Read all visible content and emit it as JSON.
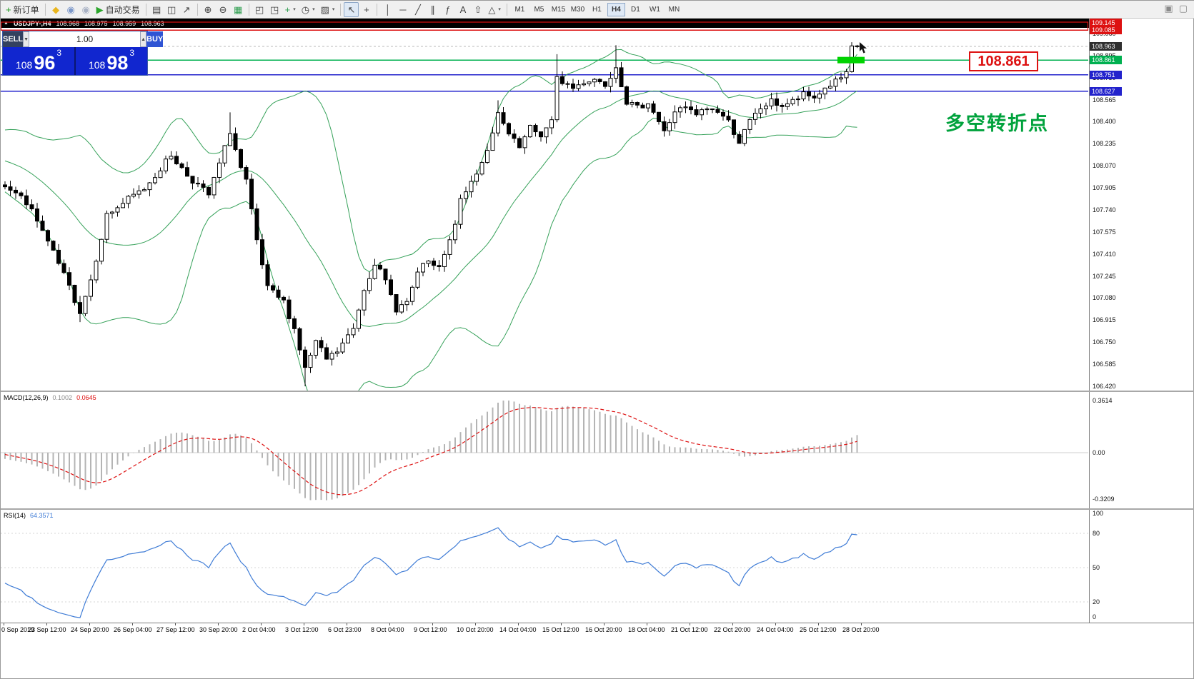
{
  "toolbar": {
    "items": [
      {
        "name": "new-order-button",
        "glyph": "+",
        "glyph_color": "#1f9d1f",
        "label": "新订单"
      },
      {
        "sep": true
      },
      {
        "name": "mql5-market-icon",
        "glyph": "◆",
        "glyph_color": "#e9b51d"
      },
      {
        "name": "community-icon",
        "glyph": "◉",
        "glyph_color": "#7b97c9"
      },
      {
        "name": "sounds-icon",
        "glyph": "◉",
        "glyph_color": "#a9b2c4"
      },
      {
        "name": "auto-trading-button",
        "glyph": "▶",
        "glyph_color": "#2aa52a",
        "label": "自动交易"
      },
      {
        "sep": true
      },
      {
        "name": "bar-chart-icon",
        "glyph": "▤"
      },
      {
        "name": "candlestick-chart-icon",
        "glyph": "◫"
      },
      {
        "name": "line-chart-icon",
        "glyph": "↗"
      },
      {
        "sep": true
      },
      {
        "name": "zoom-in-icon",
        "glyph": "⊕"
      },
      {
        "name": "zoom-out-icon",
        "glyph": "⊖"
      },
      {
        "name": "tile-windows-icon",
        "glyph": "▦",
        "glyph_color": "#2e9e4f"
      },
      {
        "sep": true
      },
      {
        "name": "cascade-windows-icon",
        "glyph": "◰"
      },
      {
        "name": "arrange-windows-icon",
        "glyph": "◳"
      },
      {
        "name": "indicators-icon",
        "glyph": "+",
        "glyph_color": "#2e9e4f",
        "caret": true
      },
      {
        "name": "periods-icon",
        "glyph": "◷",
        "caret": true
      },
      {
        "name": "templates-icon",
        "glyph": "▨",
        "caret": true
      },
      {
        "sep": true
      },
      {
        "name": "cursor-icon",
        "glyph": "↖",
        "active": true
      },
      {
        "name": "crosshair-icon",
        "glyph": "+"
      },
      {
        "sep": true
      },
      {
        "name": "vertical-line-icon",
        "glyph": "│"
      },
      {
        "name": "horizontal-line-icon",
        "glyph": "─"
      },
      {
        "name": "trendline-icon",
        "glyph": "╱"
      },
      {
        "name": "equidistant-channel-icon",
        "glyph": "∥"
      },
      {
        "name": "fibonacci-icon",
        "glyph": "ƒ"
      },
      {
        "name": "text-label-icon",
        "glyph": "A"
      },
      {
        "name": "arrows-tool-icon",
        "glyph": "⇧"
      },
      {
        "name": "shapes-icon",
        "glyph": "△",
        "caret": true
      },
      {
        "sep": true
      }
    ],
    "timeframes": [
      "M1",
      "M5",
      "M15",
      "M30",
      "H1",
      "H4",
      "D1",
      "W1",
      "MN"
    ],
    "active_timeframe": "H4",
    "right_items": [
      {
        "name": "restore-window-icon",
        "glyph": "▣"
      },
      {
        "name": "close-window-icon",
        "glyph": "▢"
      }
    ]
  },
  "symbol_bar": {
    "expand_icon": "▲",
    "title": "USDJPY-,H4",
    "open": "108.968",
    "high": "108.975",
    "low": "108.959",
    "close": "108.963"
  },
  "trade_panel": {
    "sell_label": "SELL",
    "buy_label": "BUY",
    "volume": "1.00",
    "spin_down": "▼",
    "spin_up": "▲",
    "sell_price": {
      "big": "108",
      "pips": "96",
      "point": "3"
    },
    "buy_price": {
      "big": "108",
      "pips": "98",
      "point": "3"
    }
  },
  "price_axis": {
    "labels": [
      "109.060",
      "108.895",
      "108.730",
      "108.565",
      "108.400",
      "108.235",
      "108.070",
      "107.905",
      "107.740",
      "107.575",
      "107.410",
      "107.245",
      "107.080",
      "106.915",
      "106.750",
      "106.585",
      "106.420"
    ],
    "tags": [
      {
        "name": "resistance-1",
        "value": "109.145",
        "color": "#dd1111"
      },
      {
        "name": "resistance-2",
        "value": "109.085",
        "color": "#dd1111"
      },
      {
        "name": "bid",
        "value": "108.963",
        "color": "#2f2f2f"
      },
      {
        "name": "pivot",
        "value": "108.861",
        "color": "#00b050"
      },
      {
        "name": "support-1",
        "value": "108.751",
        "color": "#2222cc"
      },
      {
        "name": "support-2",
        "value": "108.627",
        "color": "#2222cc"
      }
    ]
  },
  "annotations": {
    "price_label": "108.861",
    "turning_point_text": "多空转折点"
  },
  "macd": {
    "label": "MACD(12,26,9)",
    "value_main": "0.1002",
    "value_signal": "0.0645",
    "axis": [
      "0.3614",
      "0.00",
      "-0.3209"
    ]
  },
  "rsi": {
    "label": "RSI(14)",
    "value": "64.3571",
    "axis": [
      "100",
      "80",
      "50",
      "20",
      "0"
    ]
  },
  "time_axis": [
    "0 Sep 2019",
    "23 Sep 12:00",
    "24 Sep 20:00",
    "26 Sep 04:00",
    "27 Sep 12:00",
    "30 Sep 20:00",
    "2 Oct 04:00",
    "3 Oct 12:00",
    "6 Oct 23:00",
    "8 Oct 04:00",
    "9 Oct 12:00",
    "10 Oct 20:00",
    "14 Oct 04:00",
    "15 Oct 12:00",
    "16 Oct 20:00",
    "18 Oct 04:00",
    "21 Oct 12:00",
    "22 Oct 20:00",
    "24 Oct 04:00",
    "25 Oct 12:00",
    "28 Oct 20:00"
  ],
  "chart_data": {
    "type": "candlestick",
    "symbol": "USDJPY",
    "timeframe": "H4",
    "title": "USDJPY-,H4  108.968 108.975 108.959 108.963",
    "visible_price_range": [
      106.42,
      109.16
    ],
    "candle_count": 160,
    "warmup": 24,
    "last_close": 108.963,
    "anchors": [
      [
        -24,
        108.05
      ],
      [
        -14,
        108.28
      ],
      [
        -6,
        108.02
      ],
      [
        0,
        107.93
      ],
      [
        4,
        107.8
      ],
      [
        7,
        107.58
      ],
      [
        11,
        107.25
      ],
      [
        14,
        106.98
      ],
      [
        16,
        107.22
      ],
      [
        19,
        107.7
      ],
      [
        23,
        107.82
      ],
      [
        26,
        107.9
      ],
      [
        31,
        108.15
      ],
      [
        34,
        108.0
      ],
      [
        38,
        107.85
      ],
      [
        41,
        108.2
      ],
      [
        42,
        108.33
      ],
      [
        44,
        108.05
      ],
      [
        45,
        107.95
      ],
      [
        47,
        107.5
      ],
      [
        49,
        107.15
      ],
      [
        52,
        107.05
      ],
      [
        54,
        106.85
      ],
      [
        56,
        106.55
      ],
      [
        58,
        106.75
      ],
      [
        60,
        106.62
      ],
      [
        62,
        106.68
      ],
      [
        65,
        106.85
      ],
      [
        67,
        107.15
      ],
      [
        69,
        107.35
      ],
      [
        71,
        107.2
      ],
      [
        73,
        107.0
      ],
      [
        75,
        107.05
      ],
      [
        78,
        107.35
      ],
      [
        81,
        107.3
      ],
      [
        83,
        107.5
      ],
      [
        85,
        107.8
      ],
      [
        87,
        107.95
      ],
      [
        89,
        108.1
      ],
      [
        91,
        108.3
      ],
      [
        92,
        108.45
      ],
      [
        94,
        108.3
      ],
      [
        96,
        108.2
      ],
      [
        98,
        108.35
      ],
      [
        100,
        108.3
      ],
      [
        102,
        108.4
      ],
      [
        103,
        108.72
      ],
      [
        105,
        108.68
      ],
      [
        106,
        108.65
      ],
      [
        108,
        108.7
      ],
      [
        110,
        108.72
      ],
      [
        112,
        108.68
      ],
      [
        114,
        108.82
      ],
      [
        116,
        108.55
      ],
      [
        118,
        108.5
      ],
      [
        120,
        108.55
      ],
      [
        122,
        108.4
      ],
      [
        123,
        108.32
      ],
      [
        125,
        108.48
      ],
      [
        127,
        108.5
      ],
      [
        129,
        108.45
      ],
      [
        131,
        108.5
      ],
      [
        133,
        108.48
      ],
      [
        135,
        108.4
      ],
      [
        137,
        108.25
      ],
      [
        139,
        108.4
      ],
      [
        141,
        108.5
      ],
      [
        143,
        108.55
      ],
      [
        145,
        108.52
      ],
      [
        147,
        108.55
      ],
      [
        149,
        108.6
      ],
      [
        151,
        108.58
      ],
      [
        153,
        108.65
      ],
      [
        155,
        108.7
      ],
      [
        157,
        108.75
      ],
      [
        158,
        108.95
      ],
      [
        159,
        108.963
      ]
    ],
    "forced_wicks": [
      [
        14,
        "low",
        106.9
      ],
      [
        42,
        "high",
        108.47
      ],
      [
        56,
        "low",
        106.42
      ],
      [
        92,
        "high",
        108.56
      ],
      [
        103,
        "high",
        108.905
      ],
      [
        114,
        "high",
        108.972
      ],
      [
        158,
        "high",
        108.995
      ],
      [
        159,
        "high",
        108.975
      ]
    ],
    "hlines": [
      {
        "price": 109.145,
        "color": "#dd1111",
        "style": "solid",
        "name": "resistance-line-1"
      },
      {
        "price": 109.085,
        "color": "#dd1111",
        "style": "solid",
        "name": "resistance-line-2"
      },
      {
        "price": 108.963,
        "color": "#b8b8b8",
        "style": "dash",
        "name": "bid-line"
      },
      {
        "price": 108.861,
        "color": "#00b050",
        "style": "solid",
        "name": "pivot-line"
      },
      {
        "price": 108.751,
        "color": "#2222cc",
        "style": "solid",
        "name": "support-line-1"
      },
      {
        "price": 108.627,
        "color": "#2222cc",
        "style": "solid",
        "name": "support-line-2"
      }
    ],
    "highlight_bar": {
      "price": 108.861,
      "color": "#00d300"
    },
    "bollinger": {
      "period": 20,
      "deviation": 2,
      "color": "#35a159"
    },
    "indicators": {
      "macd": {
        "fast": 12,
        "slow": 26,
        "signal": 9,
        "current_main": 0.1002,
        "current_signal": 0.0645,
        "axis_max": 0.3614,
        "axis_min": -0.3209
      },
      "rsi": {
        "period": 14,
        "current": 64.3571,
        "levels": [
          100,
          80,
          50,
          20,
          0
        ]
      }
    }
  }
}
